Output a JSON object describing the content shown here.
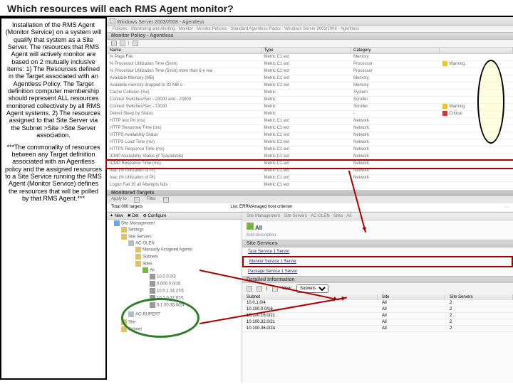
{
  "header": {
    "title": "Which resources will each RMS Agent monitor?"
  },
  "sidebar_text": {
    "p1": "Installation of the RMS Agent (Monitor Service) on a system will qualify that system as a Site Server. The resources that RMS Agent will actively monitor are based on 2 mutually inclusive items:  1) The Resources defined in the Target associated with an Agentless Policy. The Target definition computer membership should represent ALL resources monitored collectively by all RMS Agent systems. 2) The resources assigned to that Site Server via the Subnet  >Site  >Site Server association.",
    "p2": "***The commonality of resources between any Target definition associated with an Agentless policy and the assigned resources to a Site Service running  the RMS Agent (Monitor Service) defines the resources that will be polled by that RMS Agent.***"
  },
  "window": {
    "title": "Windows Server 2003/2008 - Agentless",
    "breadcrumb": "Policies  ·  Monitoring and Alerting  ·  Monitor  ·  Monitor Policies  ·  Standard Agentless Packs  ·  Windows Server 2003/2008 - Agentless",
    "policy_header": "Monitor Policy - Agentless"
  },
  "metrics": {
    "cols": [
      "Name",
      "Type",
      "Category",
      ""
    ],
    "rows": [
      {
        "n": "% Page File",
        "t": "Metric C1 ext",
        "c": "Memory",
        "s": ""
      },
      {
        "n": "% Processor Utilization Time (5min)",
        "t": "Metric C1 ext",
        "c": "Processor",
        "s": "warn",
        "sl": "Warning"
      },
      {
        "n": "% Processor Utilization Time (5min) more than 6 e rea",
        "t": "Metric C1 ext",
        "c": "Processor",
        "s": ""
      },
      {
        "n": "Available Memory (MB)",
        "t": "Metric C1 ext",
        "c": "Memory",
        "s": ""
      },
      {
        "n": "Available memory dropped to 32 MB o -",
        "t": "Metric C1 ext",
        "c": "Memory",
        "s": ""
      },
      {
        "n": "Cache Collision (%c)",
        "t": "Metric",
        "c": "System",
        "s": ""
      },
      {
        "n": "Context Switches/Sec - 23000 and - 23000",
        "t": "Metric",
        "c": "Scroller",
        "s": ""
      },
      {
        "n": "Context Switches/Sec - 73000",
        "t": "Metric",
        "c": "Scroller",
        "s": "warn",
        "sl": "Warning"
      },
      {
        "n": "Detect Sleep by Status",
        "t": "Metric",
        "c": "-",
        "s": "crit",
        "sl": "Critical"
      },
      {
        "n": "HTTP test Prt (ms)",
        "t": "Metric C1 ext",
        "c": "Network",
        "s": ""
      },
      {
        "n": "HTTP Response Time (ms)",
        "t": "Metric C1 ext",
        "c": "Network",
        "s": ""
      },
      {
        "n": "HTTPS Availability Status",
        "t": "Metric C1 ext",
        "c": "Network",
        "s": ""
      },
      {
        "n": "HTTPS Load Time (ms)",
        "t": "Metric C1 ext",
        "c": "Network",
        "s": ""
      },
      {
        "n": "HTTPS Response Time (ms)",
        "t": "Metric C1 ext",
        "c": "Network",
        "s": ""
      },
      {
        "n": "ICMP Availability Status (if Toavailable)",
        "t": "Metric C1 ext",
        "c": "Network",
        "s": ""
      },
      {
        "n": "ICMP Response Time (ms)",
        "t": "Metric C1 ext",
        "c": "Network",
        "s": "",
        "hl": true
      },
      {
        "n": "Ivac (% Utilization of Pt)",
        "t": "Metric C1 ext",
        "c": "Network",
        "s": ""
      },
      {
        "n": "Ivac (% Utilization of Pt)",
        "t": "Metric C1 ext",
        "c": "Network",
        "s": ""
      },
      {
        "n": "Logon  Fail 10 all Attempts fails",
        "t": "Metric C1 ext",
        "c": "-",
        "s": ""
      }
    ]
  },
  "monitored_targets": {
    "header": "Monitored Targets",
    "apply_to": "Apply to",
    "filter": "Filter",
    "add": "+",
    "refresh": "↻",
    "total": "Total  000 targets",
    "list": "List:  ERRMAnaged host criterion"
  },
  "tree_toolbar": {
    "new": "New",
    "del": "Del",
    "cfg": "Configure"
  },
  "tree": {
    "root": "Site Management",
    "settings": "Settings",
    "site_servers": "Site Servers",
    "ac_glen": "AC-GLEN",
    "manually": "Manually Assigned Agents",
    "subnets": "Subnets",
    "sites": "Sites",
    "all": "All",
    "s1": "10.0.0.0/3",
    "s2": "0.000.0.0/15",
    "s3": "10.0.1.14.27/1",
    "s4": "10.1.0.37.07/1",
    "s5": "0.1.00.35.0/24",
    "ac_rupert": "AC-RUPERT",
    "site": "Site",
    "subnet": "Subnet"
  },
  "detail": {
    "breadcrumb": "Site Management  ·  Site Servers  ·  AC-GLEN  ·  Sites  ·  All  ·",
    "all": "All",
    "add_desc": "Add description",
    "site_services": "Site Services",
    "task": "Task Service  1 Server",
    "monitor": "Monitor Service  1 Server",
    "package": "Package Service  1 Server",
    "det_info": "Detailed Information",
    "view": "View:",
    "view_opt": "Subnets",
    "cols": [
      "Subnet",
      "Site",
      "Site Servers"
    ],
    "rows": [
      {
        "sub": "10.0.1.0/4",
        "site": "All",
        "ss": "2"
      },
      {
        "sub": "10.100.0.0/16",
        "site": "All",
        "ss": "2"
      },
      {
        "sub": "10.100.16.0/21",
        "site": "All",
        "ss": "2"
      },
      {
        "sub": "10.100.32.0/21",
        "site": "All",
        "ss": "2"
      },
      {
        "sub": "10.100.36.0/24",
        "site": "All",
        "ss": "2"
      }
    ]
  }
}
